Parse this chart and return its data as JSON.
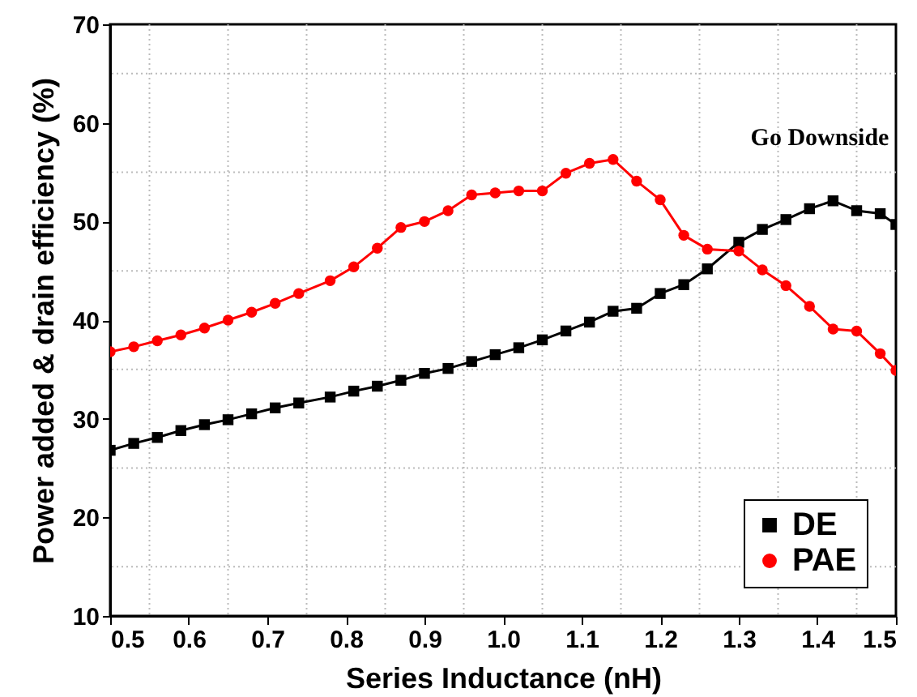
{
  "chart_data": {
    "type": "line",
    "xlabel": "Series Inductance (nH)",
    "ylabel": "Power added & drain efficiency (%)",
    "x": [
      0.5,
      0.53,
      0.56,
      0.59,
      0.62,
      0.65,
      0.68,
      0.71,
      0.74,
      0.78,
      0.81,
      0.84,
      0.87,
      0.9,
      0.93,
      0.96,
      0.99,
      1.02,
      1.05,
      1.08,
      1.11,
      1.14,
      1.17,
      1.2,
      1.23,
      1.26,
      1.3,
      1.33,
      1.36,
      1.39,
      1.42,
      1.45,
      1.48,
      1.5
    ],
    "series": [
      {
        "name": "DE",
        "color": "#000000",
        "marker": "square",
        "values": [
          26.8,
          27.5,
          28.1,
          28.8,
          29.4,
          29.9,
          30.5,
          31.1,
          31.6,
          32.2,
          32.8,
          33.3,
          33.9,
          34.6,
          35.1,
          35.8,
          36.5,
          37.2,
          38.0,
          38.9,
          39.8,
          40.9,
          41.2,
          42.7,
          43.6,
          45.2,
          47.9,
          49.2,
          50.2,
          51.3,
          52.1,
          51.1,
          50.8,
          49.7
        ]
      },
      {
        "name": "PAE",
        "color": "#ff0000",
        "marker": "circle",
        "values": [
          36.8,
          37.3,
          37.9,
          38.5,
          39.2,
          40.0,
          40.8,
          41.7,
          42.7,
          44.0,
          45.4,
          47.3,
          49.4,
          50.0,
          51.1,
          52.7,
          52.9,
          53.1,
          53.1,
          54.9,
          55.9,
          56.3,
          54.1,
          52.2,
          48.6,
          47.2,
          47.0,
          45.1,
          43.5,
          41.4,
          39.1,
          38.9,
          36.6,
          34.9
        ]
      }
    ],
    "xlim": [
      0.5,
      1.5
    ],
    "xticks": [
      0.5,
      {
        "value": 0.55,
        "label": null
      },
      0.6,
      {
        "value": 0.65,
        "label": null
      },
      0.7,
      {
        "value": 0.75,
        "label": null
      },
      0.8,
      {
        "value": 0.85,
        "label": null
      },
      0.9,
      {
        "value": 0.95,
        "label": null
      },
      {
        "value": 1.0,
        "label": "1.0"
      },
      {
        "value": 1.05,
        "label": null
      },
      1.1,
      {
        "value": 1.15,
        "label": null
      },
      1.2,
      {
        "value": 1.25,
        "label": null
      },
      1.3,
      {
        "value": 1.35,
        "label": null
      },
      1.4,
      {
        "value": 1.45,
        "label": null
      },
      1.5
    ],
    "ylim": [
      10,
      70
    ],
    "yticks": [
      10,
      {
        "value": 15,
        "label": null
      },
      20,
      {
        "value": 25,
        "label": null
      },
      30,
      {
        "value": 35,
        "label": null
      },
      40,
      {
        "value": 45,
        "label": null
      },
      50,
      {
        "value": 55,
        "label": null
      },
      60,
      {
        "value": 65,
        "label": null
      },
      70
    ],
    "grid": true,
    "legend": "bottom right",
    "line_style": "solid",
    "annotations": [
      "Go Downside"
    ]
  }
}
